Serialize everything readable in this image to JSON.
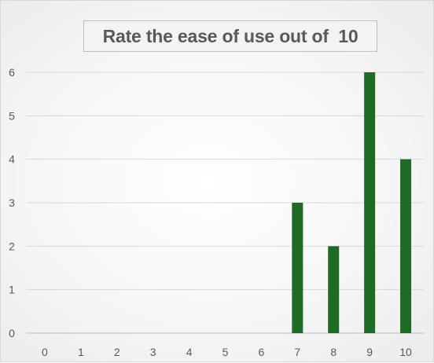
{
  "chart_data": {
    "type": "bar",
    "title": "Rate the ease of use out of  10",
    "xlabel": "",
    "ylabel": "",
    "categories": [
      "0",
      "1",
      "2",
      "3",
      "4",
      "5",
      "6",
      "7",
      "8",
      "9",
      "10"
    ],
    "values": [
      0,
      0,
      0,
      0,
      0,
      0,
      0,
      3,
      2,
      6,
      4
    ],
    "ylim": [
      0,
      6
    ],
    "yticks": [
      "0",
      "1",
      "2",
      "3",
      "4",
      "5",
      "6"
    ],
    "grid": true,
    "legend": "none",
    "colors": {
      "bar": "#1e6b26",
      "grid": "#d9d9d9",
      "text": "#595959"
    }
  }
}
